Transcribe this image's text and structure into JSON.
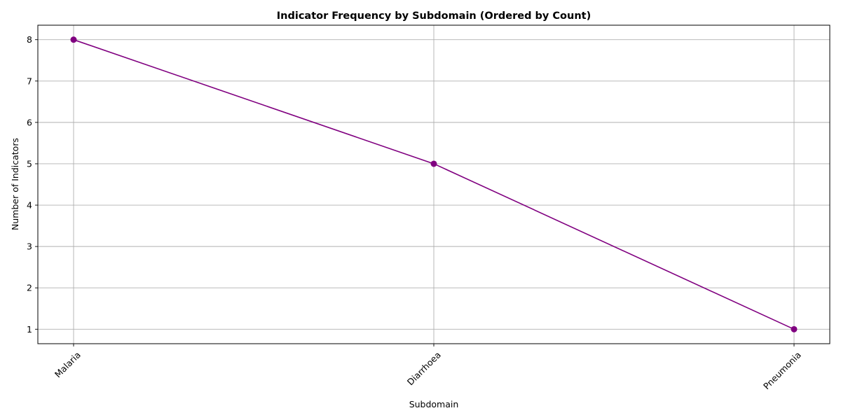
{
  "chart_data": {
    "type": "line",
    "title": "Indicator Frequency by Subdomain (Ordered by Count)",
    "xlabel": "Subdomain",
    "ylabel": "Number of Indicators",
    "categories": [
      "Malaria",
      "Diarrhoea",
      "Pneumonia"
    ],
    "series": [
      {
        "values": [
          8,
          5,
          1
        ],
        "color": "#800080"
      }
    ],
    "yticks": [
      1,
      2,
      3,
      4,
      5,
      6,
      7,
      8
    ],
    "ylim": [
      0.65,
      8.35
    ],
    "grid": true,
    "marker": "circle",
    "xtick_rotation": 45
  }
}
